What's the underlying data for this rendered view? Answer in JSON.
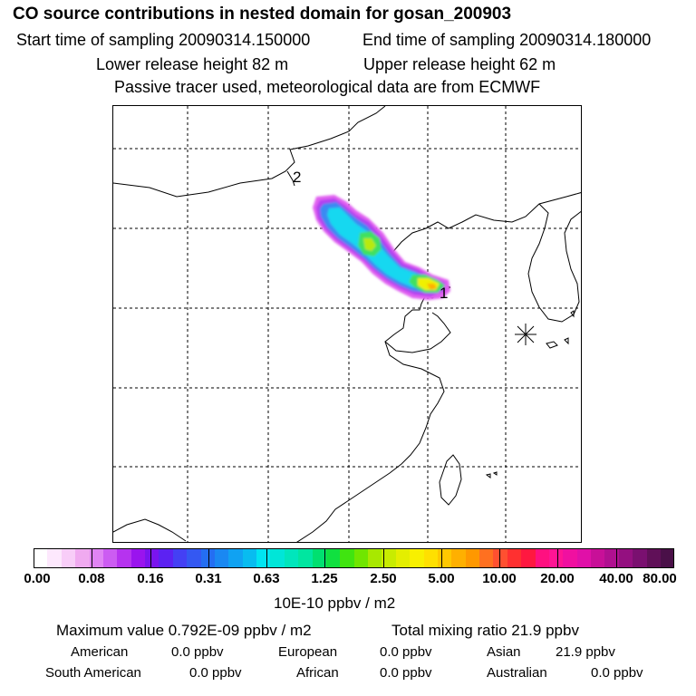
{
  "title": "CO  source contributions in nested domain for gosan_200903",
  "sampling": {
    "start": "Start time of sampling 20090314.150000",
    "end": "End time of sampling 20090314.180000"
  },
  "release": {
    "lower": "Lower release height   82 m",
    "upper": "Upper release height   62 m"
  },
  "tracer_note": "Passive tracer used, meteorological data are from ECMWF",
  "map": {
    "markers": [
      {
        "label": "2",
        "kind": "source-label"
      },
      {
        "label": "1",
        "kind": "source-label"
      }
    ],
    "receptor_symbol": "asterisk"
  },
  "colorbar": {
    "tick_labels": [
      "0.00",
      "0.08",
      "0.16",
      "0.31",
      "0.63",
      "1.25",
      "2.50",
      "5.00",
      "10.00",
      "20.00",
      "40.00",
      "80.00"
    ],
    "colors": [
      "#ffffff",
      "#fde8fd",
      "#f8cdf8",
      "#f0aaf0",
      "#e084f4",
      "#cc5cf2",
      "#b633ef",
      "#9a14ee",
      "#7a14ee",
      "#5c22f2",
      "#4440f4",
      "#3458f2",
      "#246ef2",
      "#1a88f2",
      "#10a2f2",
      "#08bcf0",
      "#00e4f2",
      "#00e6d8",
      "#00e6bc",
      "#00e6a0",
      "#00e070",
      "#10e040",
      "#40e410",
      "#70e600",
      "#a8e800",
      "#c8ec00",
      "#e4ee00",
      "#f8f000",
      "#ffe000",
      "#ffc800",
      "#ffb000",
      "#ff9800",
      "#ff7020",
      "#ff5030",
      "#ff3030",
      "#ff1840",
      "#ff1080",
      "#ff1494",
      "#f010a0",
      "#e010a8",
      "#c81098",
      "#b01090",
      "#941080",
      "#7a1070",
      "#601058",
      "#4a1048"
    ],
    "units": "10E-10 ppbv / m2"
  },
  "stats": {
    "max_value": "Maximum value  0.792E-09 ppbv / m2",
    "total_mixing": "Total mixing ratio       21.9 ppbv",
    "regions": [
      {
        "name": "American",
        "value": "0.0 ppbv"
      },
      {
        "name": "European",
        "value": "0.0 ppbv"
      },
      {
        "name": "Asian",
        "value": "21.9 ppbv"
      },
      {
        "name": "South American",
        "value": "0.0 ppbv"
      },
      {
        "name": "African",
        "value": "0.0 ppbv"
      },
      {
        "name": "Australian",
        "value": "0.0 ppbv"
      }
    ]
  }
}
